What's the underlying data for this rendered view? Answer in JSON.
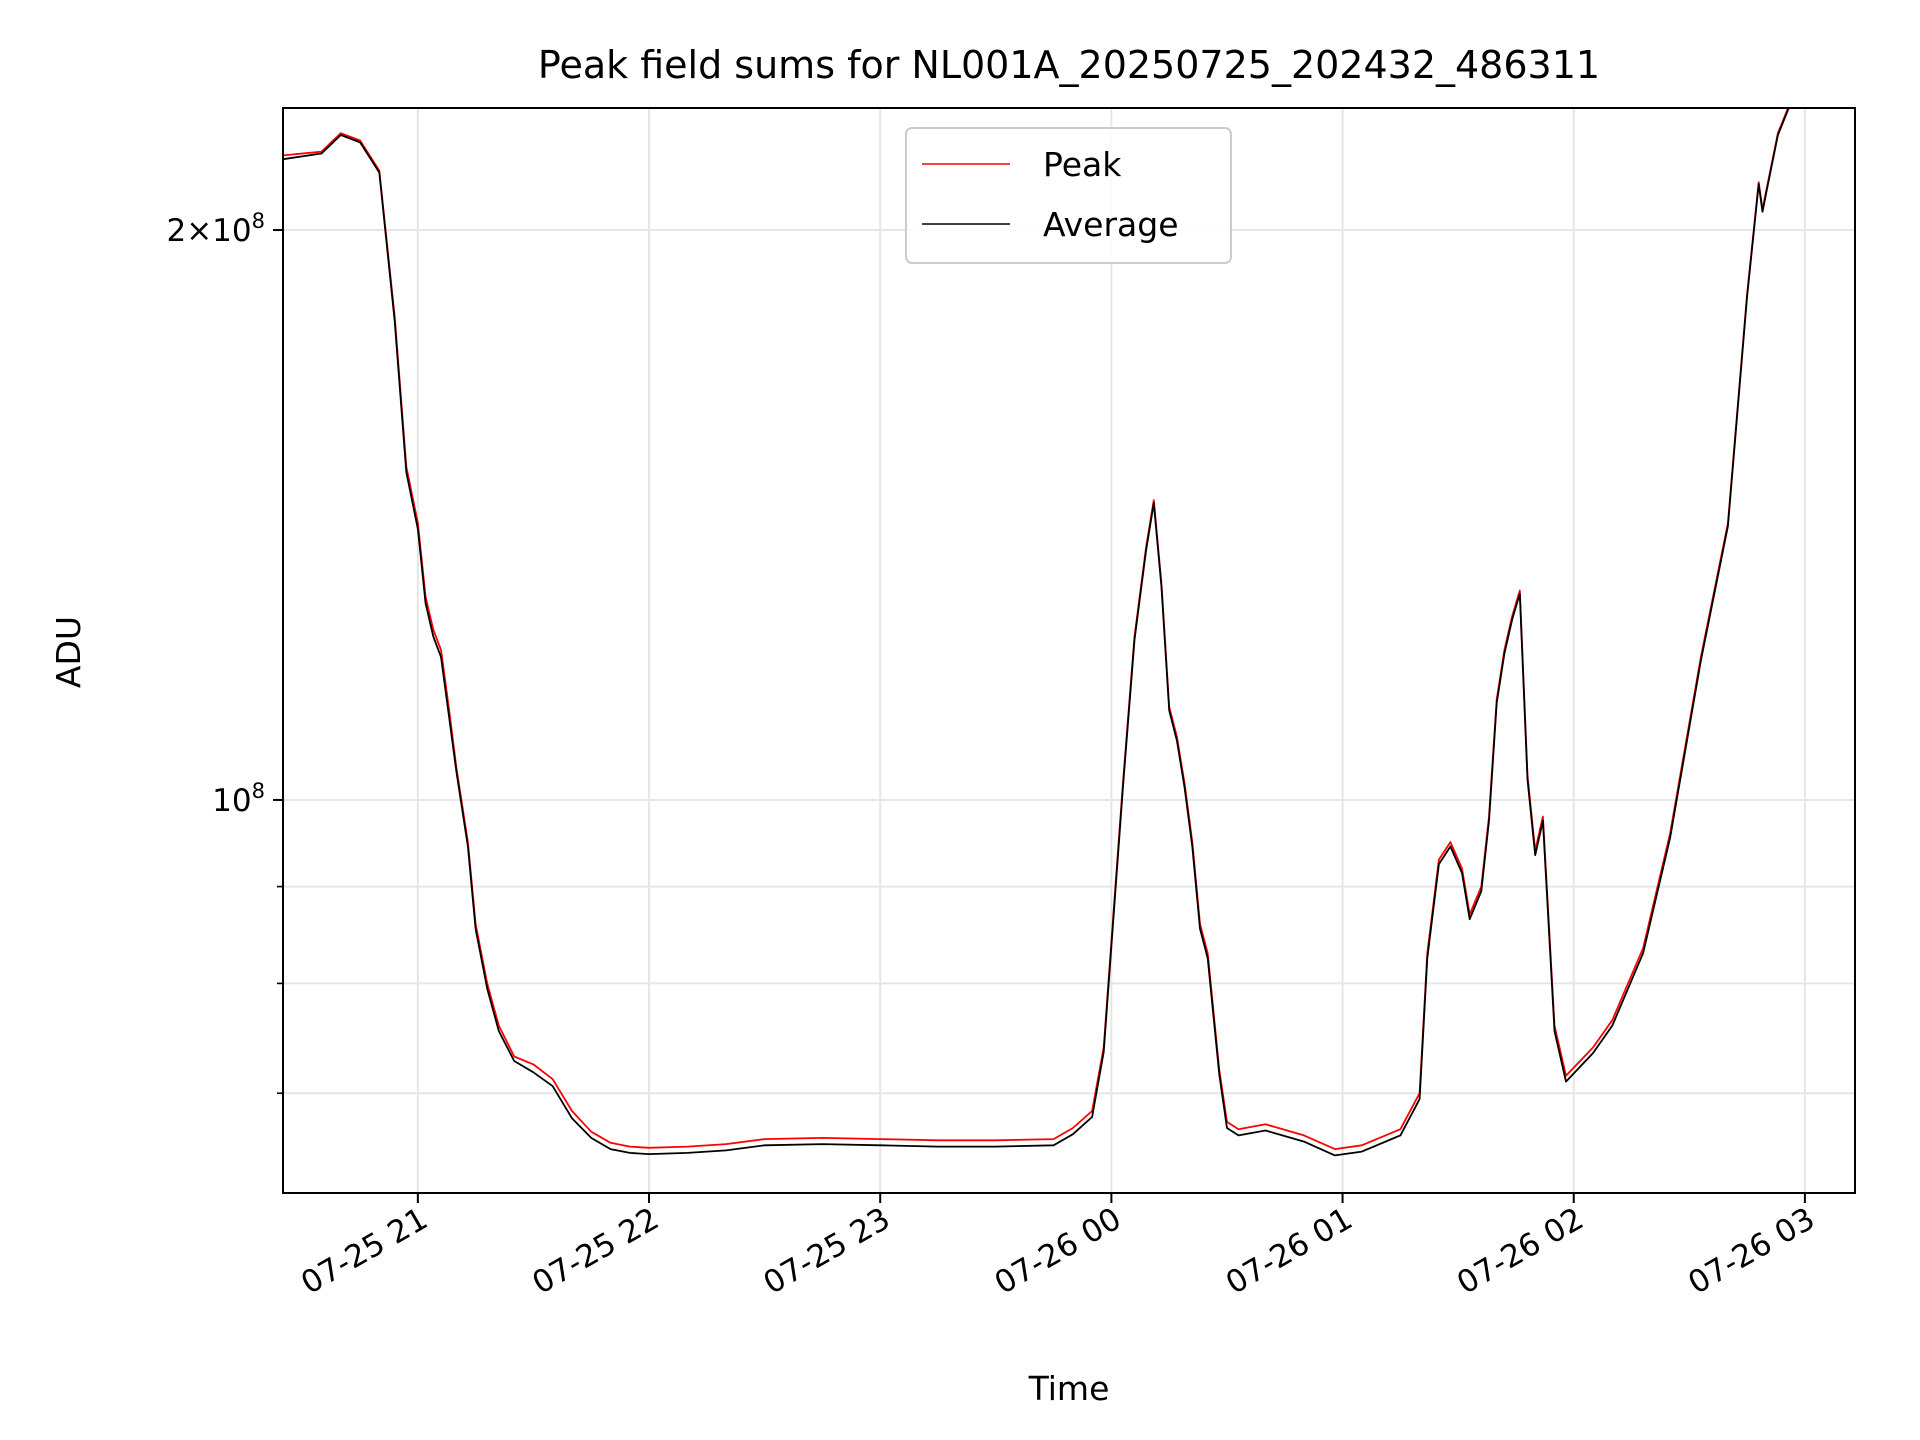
{
  "chart_data": {
    "type": "line",
    "title": "Peak field sums for NL001A_20250725_202432_486311",
    "xlabel": "Time",
    "ylabel": "ADU",
    "y_scale": "log",
    "ylim": [
      62000000,
      232000000
    ],
    "xlim": [
      "2025-07-25 20:25",
      "2025-07-26 03:13"
    ],
    "grid": true,
    "legend_position": "top-center",
    "x_ticks": [
      {
        "t": "2025-07-25 21:00",
        "label": "07-25 21"
      },
      {
        "t": "2025-07-25 22:00",
        "label": "07-25 22"
      },
      {
        "t": "2025-07-25 23:00",
        "label": "07-25 23"
      },
      {
        "t": "2025-07-26 00:00",
        "label": "07-26 00"
      },
      {
        "t": "2025-07-26 01:00",
        "label": "07-26 01"
      },
      {
        "t": "2025-07-26 02:00",
        "label": "07-26 02"
      },
      {
        "t": "2025-07-26 03:00",
        "label": "07-26 03"
      }
    ],
    "y_major_ticks": [
      {
        "v": 100000000,
        "base": "10",
        "exp": "8",
        "mult": ""
      },
      {
        "v": 200000000,
        "base": "10",
        "exp": "8",
        "mult": "2"
      }
    ],
    "y_minor_ticks": [
      70000000,
      80000000,
      90000000
    ],
    "series": [
      {
        "name": "Peak",
        "color": "#ff0000",
        "x": [
          "2025-07-25 20:25",
          "2025-07-25 20:35",
          "2025-07-25 20:40",
          "2025-07-25 20:45",
          "2025-07-25 20:50",
          "2025-07-25 20:54",
          "2025-07-25 20:57",
          "2025-07-25 21:00",
          "2025-07-25 21:02",
          "2025-07-25 21:04",
          "2025-07-25 21:06",
          "2025-07-25 21:08",
          "2025-07-25 21:10",
          "2025-07-25 21:13",
          "2025-07-25 21:15",
          "2025-07-25 21:18",
          "2025-07-25 21:21",
          "2025-07-25 21:25",
          "2025-07-25 21:30",
          "2025-07-25 21:35",
          "2025-07-25 21:40",
          "2025-07-25 21:45",
          "2025-07-25 21:50",
          "2025-07-25 21:55",
          "2025-07-25 22:00",
          "2025-07-25 22:10",
          "2025-07-25 22:20",
          "2025-07-25 22:30",
          "2025-07-25 22:45",
          "2025-07-25 23:00",
          "2025-07-25 23:15",
          "2025-07-25 23:30",
          "2025-07-25 23:45",
          "2025-07-25 23:50",
          "2025-07-25 23:55",
          "2025-07-25 23:58",
          "2025-07-26 00:03",
          "2025-07-26 00:06",
          "2025-07-26 00:09",
          "2025-07-26 00:11",
          "2025-07-26 00:13",
          "2025-07-26 00:15",
          "2025-07-26 00:17",
          "2025-07-26 00:19",
          "2025-07-26 00:21",
          "2025-07-26 00:23",
          "2025-07-26 00:25",
          "2025-07-26 00:28",
          "2025-07-26 00:30",
          "2025-07-26 00:33",
          "2025-07-26 00:40",
          "2025-07-26 00:50",
          "2025-07-26 00:58",
          "2025-07-26 01:05",
          "2025-07-26 01:15",
          "2025-07-26 01:20",
          "2025-07-26 01:22",
          "2025-07-26 01:25",
          "2025-07-26 01:28",
          "2025-07-26 01:31",
          "2025-07-26 01:33",
          "2025-07-26 01:36",
          "2025-07-26 01:38",
          "2025-07-26 01:40",
          "2025-07-26 01:42",
          "2025-07-26 01:44",
          "2025-07-26 01:46",
          "2025-07-26 01:48",
          "2025-07-26 01:50",
          "2025-07-26 01:52",
          "2025-07-26 01:55",
          "2025-07-26 01:58",
          "2025-07-26 02:05",
          "2025-07-26 02:10",
          "2025-07-26 02:18",
          "2025-07-26 02:25",
          "2025-07-26 02:33",
          "2025-07-26 02:40",
          "2025-07-26 02:45",
          "2025-07-26 02:48",
          "2025-07-26 02:49",
          "2025-07-26 02:50",
          "2025-07-26 02:53",
          "2025-07-26 02:56"
        ],
        "y": [
          219000000,
          220000000,
          225000000,
          223000000,
          215000000,
          180000000,
          150000000,
          140000000,
          128000000,
          123000000,
          120000000,
          112000000,
          104000000,
          95000000,
          86000000,
          80000000,
          76000000,
          73200000,
          72500000,
          71200000,
          68500000,
          66800000,
          65900000,
          65600000,
          65500000,
          65600000,
          65800000,
          66200000,
          66300000,
          66200000,
          66100000,
          66100000,
          66200000,
          67100000,
          68500000,
          74000000,
          102000000,
          122000000,
          136000000,
          144000000,
          130000000,
          112000000,
          108000000,
          102000000,
          95000000,
          86000000,
          83000000,
          72000000,
          67600000,
          67000000,
          67400000,
          66500000,
          65400000,
          65700000,
          67000000,
          70000000,
          83000000,
          93000000,
          95000000,
          92000000,
          87000000,
          90000000,
          98000000,
          113000000,
          120000000,
          125000000,
          129000000,
          103000000,
          94000000,
          98000000,
          76000000,
          71500000,
          74000000,
          76500000,
          83500000,
          96000000,
          119000000,
          140000000,
          185000000,
          212000000,
          205000000,
          210000000,
          225000000,
          233000000
        ]
      },
      {
        "name": "Average",
        "color": "#000000",
        "x": [
          "2025-07-25 20:25",
          "2025-07-25 20:35",
          "2025-07-25 20:40",
          "2025-07-25 20:45",
          "2025-07-25 20:50",
          "2025-07-25 20:54",
          "2025-07-25 20:57",
          "2025-07-25 21:00",
          "2025-07-25 21:02",
          "2025-07-25 21:04",
          "2025-07-25 21:06",
          "2025-07-25 21:08",
          "2025-07-25 21:10",
          "2025-07-25 21:13",
          "2025-07-25 21:15",
          "2025-07-25 21:18",
          "2025-07-25 21:21",
          "2025-07-25 21:25",
          "2025-07-25 21:30",
          "2025-07-25 21:35",
          "2025-07-25 21:40",
          "2025-07-25 21:45",
          "2025-07-25 21:50",
          "2025-07-25 21:55",
          "2025-07-25 22:00",
          "2025-07-25 22:10",
          "2025-07-25 22:20",
          "2025-07-25 22:30",
          "2025-07-25 22:45",
          "2025-07-25 23:00",
          "2025-07-25 23:15",
          "2025-07-25 23:30",
          "2025-07-25 23:45",
          "2025-07-25 23:50",
          "2025-07-25 23:55",
          "2025-07-25 23:58",
          "2025-07-26 00:03",
          "2025-07-26 00:06",
          "2025-07-26 00:09",
          "2025-07-26 00:11",
          "2025-07-26 00:13",
          "2025-07-26 00:15",
          "2025-07-26 00:17",
          "2025-07-26 00:19",
          "2025-07-26 00:21",
          "2025-07-26 00:23",
          "2025-07-26 00:25",
          "2025-07-26 00:28",
          "2025-07-26 00:30",
          "2025-07-26 00:33",
          "2025-07-26 00:40",
          "2025-07-26 00:50",
          "2025-07-26 00:58",
          "2025-07-26 01:05",
          "2025-07-26 01:15",
          "2025-07-26 01:20",
          "2025-07-26 01:22",
          "2025-07-26 01:25",
          "2025-07-26 01:28",
          "2025-07-26 01:31",
          "2025-07-26 01:33",
          "2025-07-26 01:36",
          "2025-07-26 01:38",
          "2025-07-26 01:40",
          "2025-07-26 01:42",
          "2025-07-26 01:44",
          "2025-07-26 01:46",
          "2025-07-26 01:48",
          "2025-07-26 01:50",
          "2025-07-26 01:52",
          "2025-07-26 01:55",
          "2025-07-26 01:58",
          "2025-07-26 02:05",
          "2025-07-26 02:10",
          "2025-07-26 02:18",
          "2025-07-26 02:25",
          "2025-07-26 02:33",
          "2025-07-26 02:40",
          "2025-07-26 02:45",
          "2025-07-26 02:48",
          "2025-07-26 02:49",
          "2025-07-26 02:50",
          "2025-07-26 02:53",
          "2025-07-26 02:56"
        ],
        "y": [
          218000000,
          219500000,
          224500000,
          222500000,
          214500000,
          179000000,
          149000000,
          139000000,
          127000000,
          122000000,
          119000000,
          111000000,
          103500000,
          94500000,
          85500000,
          79500000,
          75500000,
          72800000,
          71800000,
          70600000,
          67900000,
          66300000,
          65400000,
          65100000,
          65000000,
          65100000,
          65300000,
          65700000,
          65800000,
          65700000,
          65600000,
          65600000,
          65700000,
          66600000,
          68000000,
          73600000,
          101500000,
          121500000,
          135500000,
          143500000,
          129500000,
          111500000,
          107500000,
          101500000,
          94500000,
          85500000,
          82500000,
          71600000,
          67100000,
          66500000,
          66900000,
          66000000,
          64900000,
          65200000,
          66500000,
          69500000,
          82500000,
          92500000,
          94500000,
          91500000,
          86500000,
          89500000,
          97500000,
          112500000,
          119500000,
          124500000,
          128500000,
          102500000,
          93500000,
          97500000,
          75500000,
          71000000,
          73500000,
          76000000,
          83000000,
          95500000,
          118500000,
          139500000,
          184500000,
          211500000,
          204500000,
          209500000,
          224500000,
          232500000
        ]
      }
    ]
  }
}
